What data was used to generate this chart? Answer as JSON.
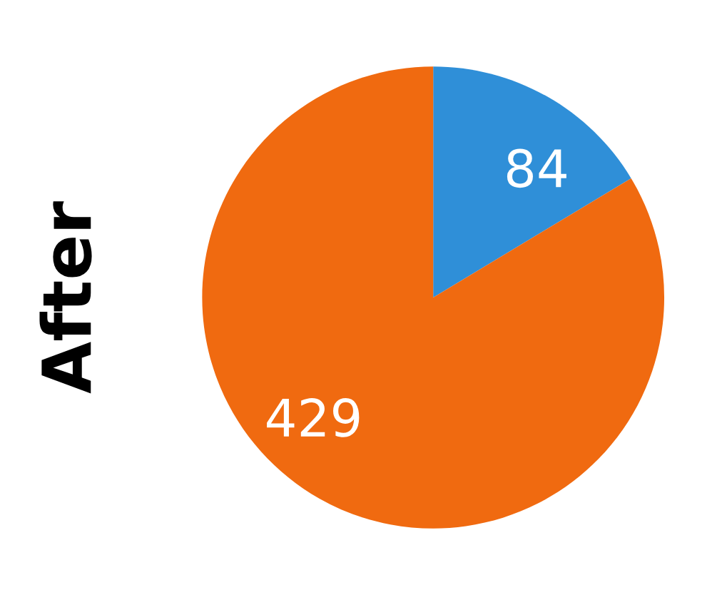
{
  "chart_data": {
    "type": "pie",
    "ylabel": "After",
    "categories": [
      null,
      null
    ],
    "values": [
      84,
      429
    ],
    "colors": [
      "#2f8fd8",
      "#f06a10"
    ],
    "data_labels": true
  }
}
